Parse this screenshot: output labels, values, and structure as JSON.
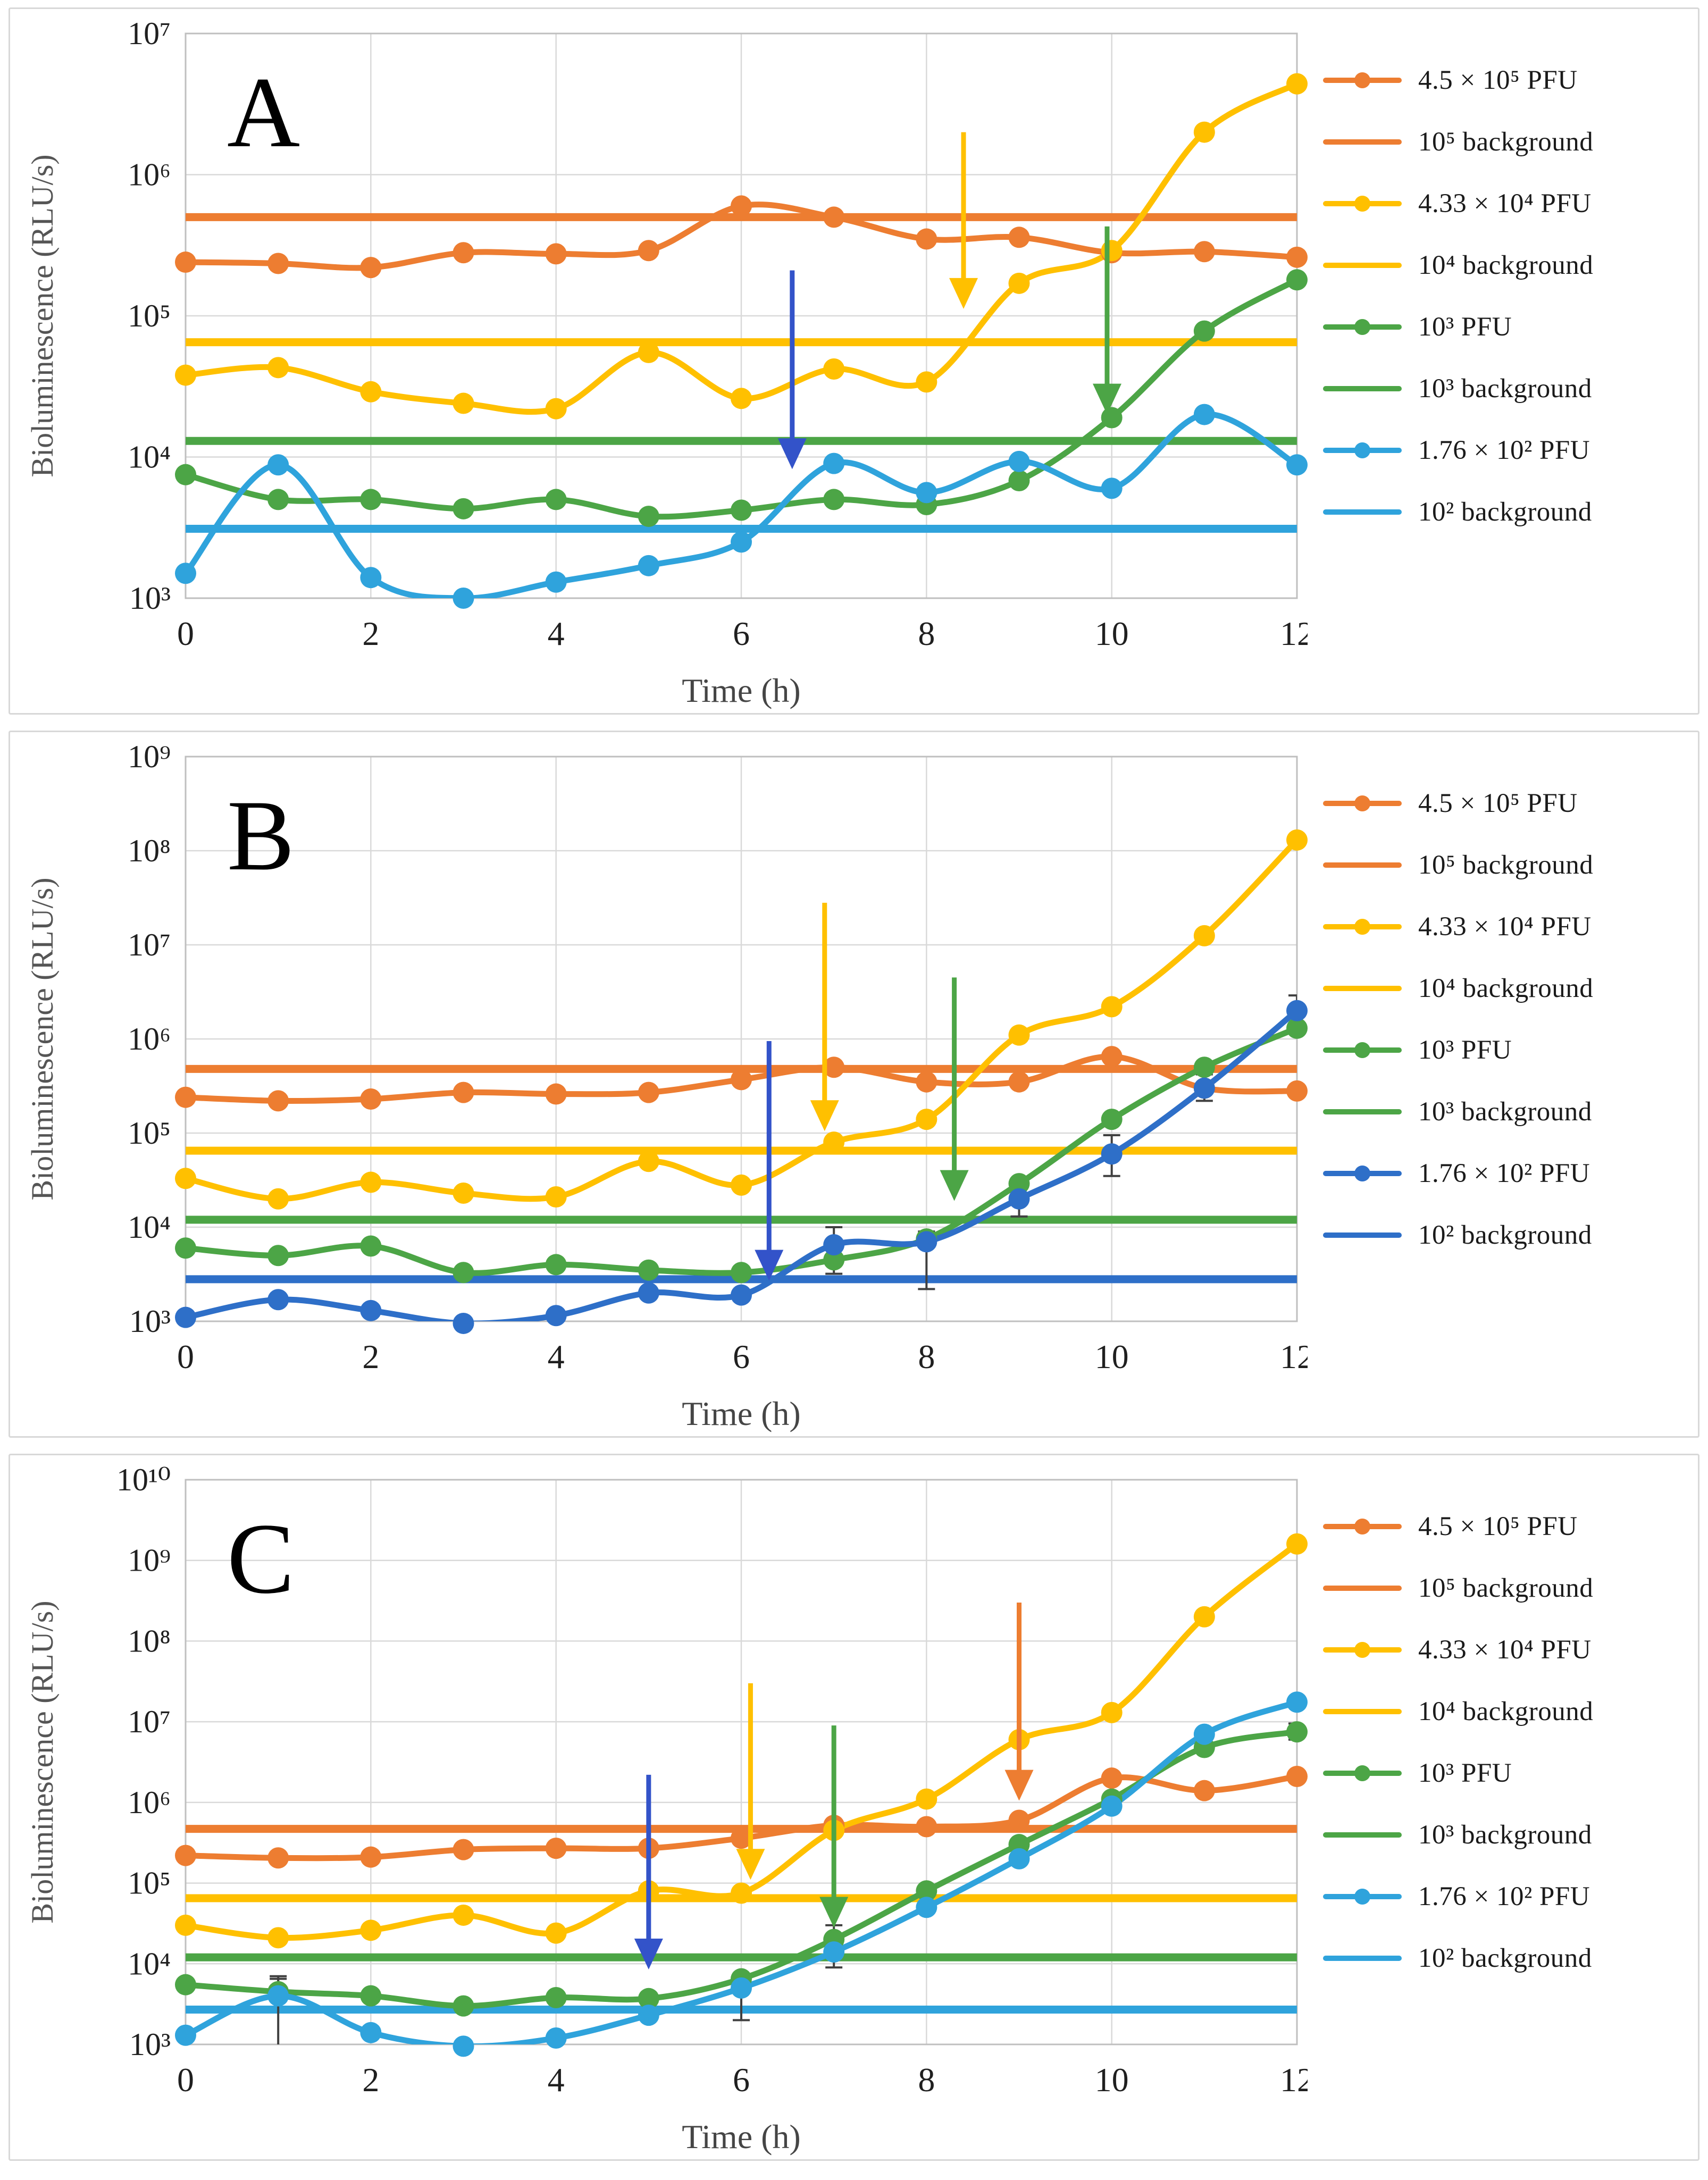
{
  "figure": {
    "description": "Three stacked semi-log line charts of phage bioluminescence over time",
    "panels": [
      "A",
      "B",
      "C"
    ]
  },
  "axis": {
    "x_label": "Time (h)",
    "y_label": "Bioluminescence (RLU/s)",
    "x_ticks": [
      "0",
      "2",
      "4",
      "6",
      "8",
      "10",
      "12"
    ],
    "x_min": 0,
    "x_max": 12
  },
  "colors": {
    "orange": "#ED7D31",
    "yellow": "#FFC000",
    "green": "#4CA546",
    "lightblue": "#2FA3DC",
    "royalblue": "#2E6FC8",
    "arrowblue": "#3353C9",
    "grid": "#D9D9D9",
    "plot_border": "#BFBFBF",
    "error": "#404040",
    "axis_text": "#1F1F1F",
    "muted_text": "#555555",
    "panel_letter": "#000000"
  },
  "chart_data": [
    {
      "id": "A",
      "letter": "A",
      "type": "line",
      "y_exp_min": 3,
      "y_exp_max": 7,
      "y_tick_labels": [
        "10⁷",
        "10⁶",
        "10⁵",
        "10⁴",
        "10³"
      ],
      "x": [
        0,
        1,
        2,
        3,
        4,
        5,
        6,
        7,
        8,
        9,
        10,
        11,
        12
      ],
      "series": [
        {
          "key": "orange",
          "label": "4.5 × 10⁵ PFU",
          "color": "orange",
          "values": [
            240000,
            235000,
            220000,
            280000,
            275000,
            290000,
            600000,
            500000,
            350000,
            360000,
            280000,
            285000,
            260000
          ]
        },
        {
          "key": "yellow",
          "label": "4.33 × 10⁴ PFU",
          "color": "yellow",
          "values": [
            38000,
            43000,
            29000,
            24000,
            22000,
            55000,
            26000,
            42000,
            34000,
            170000,
            290000,
            2000000,
            4400000
          ]
        },
        {
          "key": "green",
          "label": "10³ PFU",
          "color": "green",
          "values": [
            7500,
            5000,
            5000,
            4300,
            5000,
            3800,
            4200,
            5000,
            4600,
            6800,
            19000,
            78000,
            180000
          ]
        },
        {
          "key": "blue",
          "label": "1.76 × 10² PFU",
          "color": "lightblue",
          "values": [
            1500,
            8800,
            1400,
            1000,
            1300,
            1700,
            2500,
            9000,
            5600,
            9300,
            6000,
            20000,
            8800
          ]
        }
      ],
      "backgrounds": [
        {
          "key": "orange-bg",
          "label": "10⁵ background",
          "color": "orange",
          "value": 500000
        },
        {
          "key": "yellow-bg",
          "label": "10⁴ background",
          "color": "yellow",
          "value": 65000
        },
        {
          "key": "green-bg",
          "label": "10³ background",
          "color": "green",
          "value": 13000
        },
        {
          "key": "blue-bg",
          "label": "10² background",
          "color": "lightblue",
          "value": 3100
        }
      ],
      "arrows": [
        {
          "color": "arrowblue",
          "x": 6.55,
          "from": 210000,
          "to": 8200
        },
        {
          "color": "yellow",
          "x": 8.4,
          "from": 2000000,
          "to": 112000
        },
        {
          "color": "green",
          "x": 9.95,
          "from": 430000,
          "to": 20000
        }
      ],
      "error_bars": []
    },
    {
      "id": "B",
      "letter": "B",
      "type": "line",
      "y_exp_min": 3,
      "y_exp_max": 9,
      "y_tick_labels": [
        "10⁹",
        "10⁸",
        "10⁷",
        "10⁶",
        "10⁵",
        "10⁴",
        "10³"
      ],
      "x": [
        0,
        1,
        2,
        3,
        4,
        5,
        6,
        7,
        8,
        9,
        10,
        11,
        12
      ],
      "series": [
        {
          "key": "orange",
          "label": "4.5 × 10⁵ PFU",
          "color": "orange",
          "values": [
            240000,
            220000,
            230000,
            270000,
            260000,
            270000,
            370000,
            500000,
            350000,
            350000,
            650000,
            300000,
            280000
          ]
        },
        {
          "key": "yellow",
          "label": "4.33 × 10⁴ PFU",
          "color": "yellow",
          "values": [
            33000,
            20000,
            30000,
            23000,
            21000,
            50000,
            28000,
            80000,
            140000,
            1100000,
            2200000,
            12500000,
            130000000
          ]
        },
        {
          "key": "green",
          "label": "10³ PFU",
          "color": "green",
          "values": [
            6000,
            5000,
            6300,
            3300,
            4000,
            3500,
            3300,
            4500,
            7500,
            29000,
            140000,
            500000,
            1300000
          ]
        },
        {
          "key": "blue",
          "label": "1.76 × 10² PFU",
          "color": "royalblue",
          "values": [
            1100,
            1700,
            1300,
            950,
            1150,
            2000,
            1900,
            6500,
            7000,
            20000,
            60000,
            300000,
            2000000
          ]
        }
      ],
      "backgrounds": [
        {
          "key": "orange-bg",
          "label": "10⁵ background",
          "color": "orange",
          "value": 480000
        },
        {
          "key": "yellow-bg",
          "label": "10⁴ background",
          "color": "yellow",
          "value": 65000
        },
        {
          "key": "green-bg",
          "label": "10³ background",
          "color": "green",
          "value": 12000
        },
        {
          "key": "blue-bg",
          "label": "10² background",
          "color": "royalblue",
          "value": 2800
        }
      ],
      "arrows": [
        {
          "color": "arrowblue",
          "x": 6.3,
          "from": 950000,
          "to": 2700
        },
        {
          "color": "yellow",
          "x": 6.9,
          "from": 28000000,
          "to": 105000
        },
        {
          "color": "green",
          "x": 8.3,
          "from": 4500000,
          "to": 19000
        }
      ],
      "error_bars": [
        {
          "series": "blue",
          "x": 7,
          "low": 4000,
          "high": 10000
        },
        {
          "series": "green",
          "x": 7,
          "low": 3200,
          "high": 6200
        },
        {
          "series": "blue",
          "x": 8,
          "low": 2200,
          "high": 9000
        },
        {
          "series": "blue",
          "x": 9,
          "low": 13000,
          "high": 32000
        },
        {
          "series": "blue",
          "x": 10,
          "low": 35000,
          "high": 95000
        },
        {
          "series": "blue",
          "x": 11,
          "low": 220000,
          "high": 420000
        },
        {
          "series": "blue",
          "x": 12,
          "low": 1400000,
          "high": 2900000
        }
      ]
    },
    {
      "id": "C",
      "letter": "C",
      "type": "line",
      "y_exp_min": 3,
      "y_exp_max": 10,
      "y_tick_labels": [
        "10¹⁰",
        "10⁹",
        "10⁸",
        "10⁷",
        "10⁶",
        "10⁵",
        "10⁴",
        "10³"
      ],
      "x": [
        0,
        1,
        2,
        3,
        4,
        5,
        6,
        7,
        8,
        9,
        10,
        11,
        12
      ],
      "series": [
        {
          "key": "orange",
          "label": "4.5 × 10⁵ PFU",
          "color": "orange",
          "values": [
            220000,
            205000,
            210000,
            260000,
            270000,
            270000,
            360000,
            520000,
            500000,
            600000,
            2000000,
            1400000,
            2100000
          ]
        },
        {
          "key": "yellow",
          "label": "4.33 × 10⁴ PFU",
          "color": "yellow",
          "values": [
            30000,
            21000,
            26000,
            40000,
            24000,
            80000,
            75000,
            450000,
            1100000,
            6000000,
            13000000,
            200000000,
            1600000000
          ]
        },
        {
          "key": "green",
          "label": "10³ PFU",
          "color": "green",
          "values": [
            5500,
            4500,
            4000,
            3000,
            3800,
            3700,
            6500,
            20000,
            80000,
            300000,
            1100000,
            4800000,
            7500000
          ]
        },
        {
          "key": "blue",
          "label": "1.76 × 10² PFU",
          "color": "lightblue",
          "values": [
            1300,
            4000,
            1400,
            950,
            1200,
            2300,
            5000,
            14000,
            50000,
            200000,
            900000,
            7000000,
            17500000
          ]
        }
      ],
      "backgrounds": [
        {
          "key": "orange-bg",
          "label": "10⁵ background",
          "color": "orange",
          "value": 470000
        },
        {
          "key": "yellow-bg",
          "label": "10⁴ background",
          "color": "yellow",
          "value": 65000
        },
        {
          "key": "green-bg",
          "label": "10³ background",
          "color": "green",
          "value": 12000
        },
        {
          "key": "blue-bg",
          "label": "10² background",
          "color": "lightblue",
          "value": 2700
        }
      ],
      "arrows": [
        {
          "color": "arrowblue",
          "x": 5.0,
          "from": 2200000,
          "to": 8500
        },
        {
          "color": "yellow",
          "x": 6.1,
          "from": 30000000,
          "to": 110000
        },
        {
          "color": "green",
          "x": 7.0,
          "from": 9000000,
          "to": 28000
        },
        {
          "color": "orange",
          "x": 9.0,
          "from": 300000000,
          "to": 1050000
        }
      ],
      "error_bars": [
        {
          "series": "blue",
          "x": 1,
          "low": 800,
          "high": 7000
        },
        {
          "series": "green",
          "x": 1,
          "low": 3500,
          "high": 6500
        },
        {
          "series": "blue",
          "x": 6,
          "low": 2000,
          "high": 7000
        },
        {
          "series": "green",
          "x": 7,
          "low": 12000,
          "high": 30000
        },
        {
          "series": "blue",
          "x": 7,
          "low": 9000,
          "high": 20000
        },
        {
          "series": "green",
          "x": 12,
          "low": 6000000,
          "high": 9500000
        }
      ]
    }
  ],
  "legend": {
    "order": [
      "pfu-orange",
      "bg-orange",
      "pfu-yellow",
      "bg-yellow",
      "pfu-green",
      "bg-green",
      "pfu-blue",
      "bg-blue"
    ]
  }
}
